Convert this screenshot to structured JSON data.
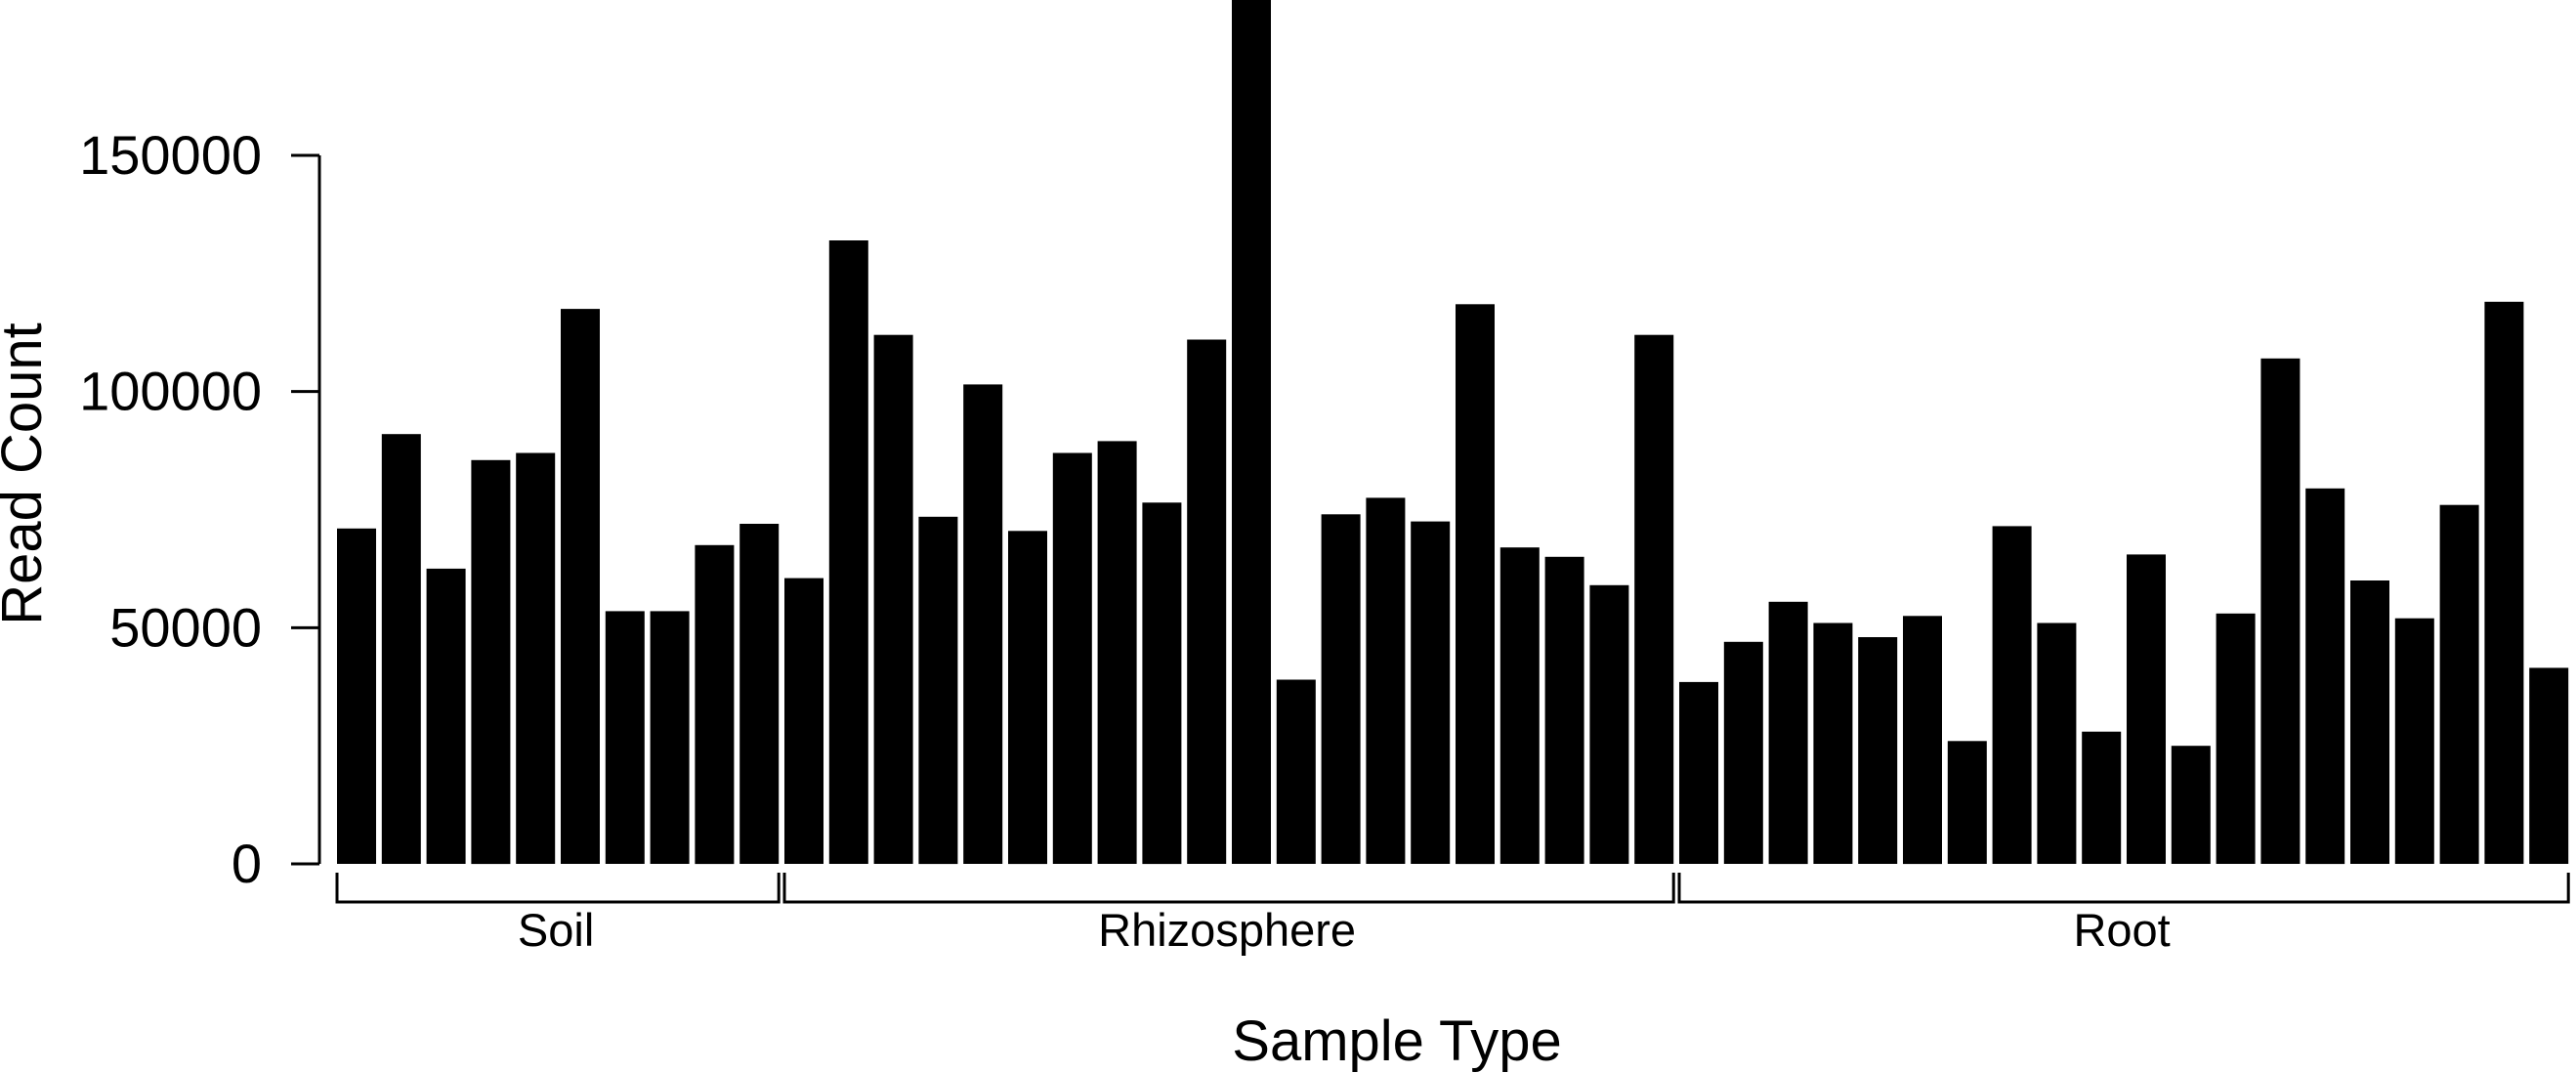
{
  "chart_data": {
    "type": "bar",
    "title": "",
    "xlabel": "Sample Type",
    "ylabel": "Read Count",
    "ylim": [
      0,
      183500
    ],
    "yticks": [
      0,
      50000,
      100000,
      150000
    ],
    "grid": false,
    "bar_color": "#000000",
    "groups": [
      {
        "name": "Soil",
        "start": 0,
        "count": 10
      },
      {
        "name": "Rhizosphere",
        "start": 10,
        "count": 20
      },
      {
        "name": "Root",
        "start": 30,
        "count": 20
      }
    ],
    "values": [
      71000,
      91000,
      62500,
      85500,
      87000,
      117500,
      53500,
      53500,
      67500,
      72000,
      60500,
      132000,
      112000,
      73500,
      101500,
      70500,
      87000,
      89500,
      76500,
      111000,
      184000,
      39000,
      74000,
      77500,
      72500,
      118500,
      67000,
      65000,
      59000,
      112000,
      38500,
      47000,
      55500,
      51000,
      48000,
      52500,
      26000,
      71500,
      51000,
      28000,
      65500,
      25000,
      53000,
      107000,
      79500,
      60000,
      52000,
      76000,
      119000,
      41500
    ]
  }
}
